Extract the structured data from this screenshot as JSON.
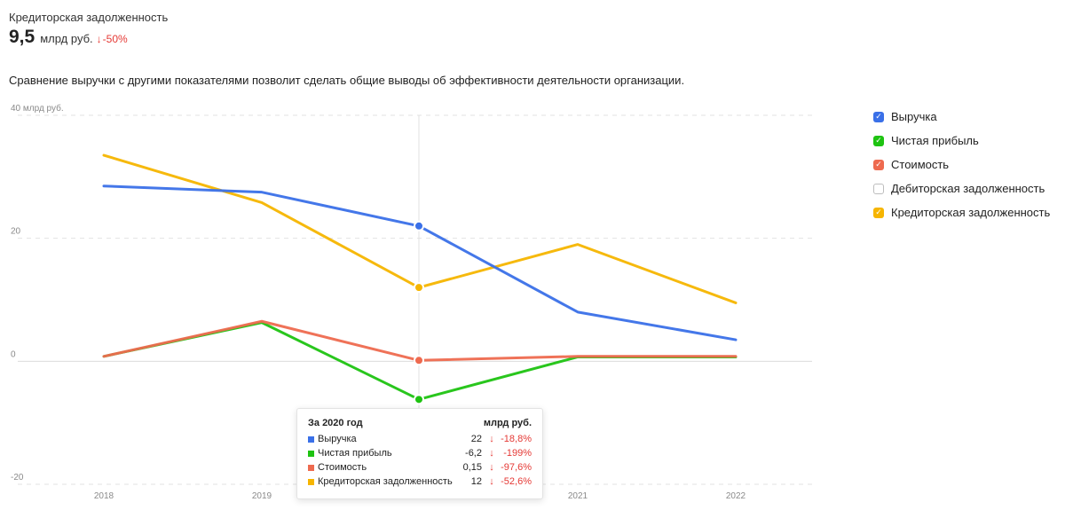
{
  "kpi": {
    "label": "Кредиторская задолженность",
    "value": "9,5",
    "unit": "млрд руб.",
    "arrow": "↓",
    "change": "-50%"
  },
  "description": "Сравнение выручки с другими показателями позволит сделать общие выводы об эффективности деятельности организации.",
  "legend": [
    {
      "label": "Выручка",
      "color": "#3a70e8",
      "checked": true,
      "check": "✓"
    },
    {
      "label": "Чистая прибыль",
      "color": "#1ec311",
      "checked": true,
      "check": "✓"
    },
    {
      "label": "Стоимость",
      "color": "#ee6a4f",
      "checked": true,
      "check": "✓"
    },
    {
      "label": "Дебиторская задолженность",
      "color": "#bdbdbd",
      "checked": false,
      "check": ""
    },
    {
      "label": "Кредиторская задолженность",
      "color": "#f6b500",
      "checked": true,
      "check": "✓"
    }
  ],
  "tooltip": {
    "title": "За 2020 год",
    "unit": "млрд руб.",
    "rows": [
      {
        "name": "Выручка",
        "value": "22",
        "arrow": "↓",
        "change": "-18,8%",
        "color": "#3a70e8"
      },
      {
        "name": "Чистая прибыль",
        "value": "-6,2",
        "arrow": "↓",
        "change": "-199%",
        "color": "#1ec311"
      },
      {
        "name": "Стоимость",
        "value": "0,15",
        "arrow": "↓",
        "change": "-97,6%",
        "color": "#ee6a4f"
      },
      {
        "name": "Кредиторская задолженность",
        "value": "12",
        "arrow": "↓",
        "change": "-52,6%",
        "color": "#f6b500"
      }
    ]
  },
  "chart_data": {
    "type": "line",
    "x": [
      "2018",
      "2019",
      "2020",
      "2021",
      "2022"
    ],
    "ylim": [
      -20,
      40
    ],
    "y_ticks": [
      {
        "value": 40,
        "label": "40 млрд руб."
      },
      {
        "value": 20,
        "label": "20"
      },
      {
        "value": 0,
        "label": "0"
      },
      {
        "value": -20,
        "label": "-20"
      }
    ],
    "grid": true,
    "legend_position": "right",
    "highlight_index": 2,
    "hidden_x_labels": [
      2
    ],
    "series": [
      {
        "name": "Кредиторская задолженность",
        "color": "#f6b500",
        "values": [
          33.5,
          25.8,
          12,
          19,
          9.5
        ]
      },
      {
        "name": "Выручка",
        "color": "#3a70e8",
        "values": [
          28.5,
          27.5,
          22,
          8,
          3.5
        ]
      },
      {
        "name": "Чистая прибыль",
        "color": "#1ec311",
        "values": [
          0.8,
          6.3,
          -6.2,
          0.7,
          0.7
        ]
      },
      {
        "name": "Стоимость",
        "color": "#ee6a4f",
        "values": [
          0.8,
          6.5,
          0.15,
          0.8,
          0.8
        ]
      }
    ]
  }
}
